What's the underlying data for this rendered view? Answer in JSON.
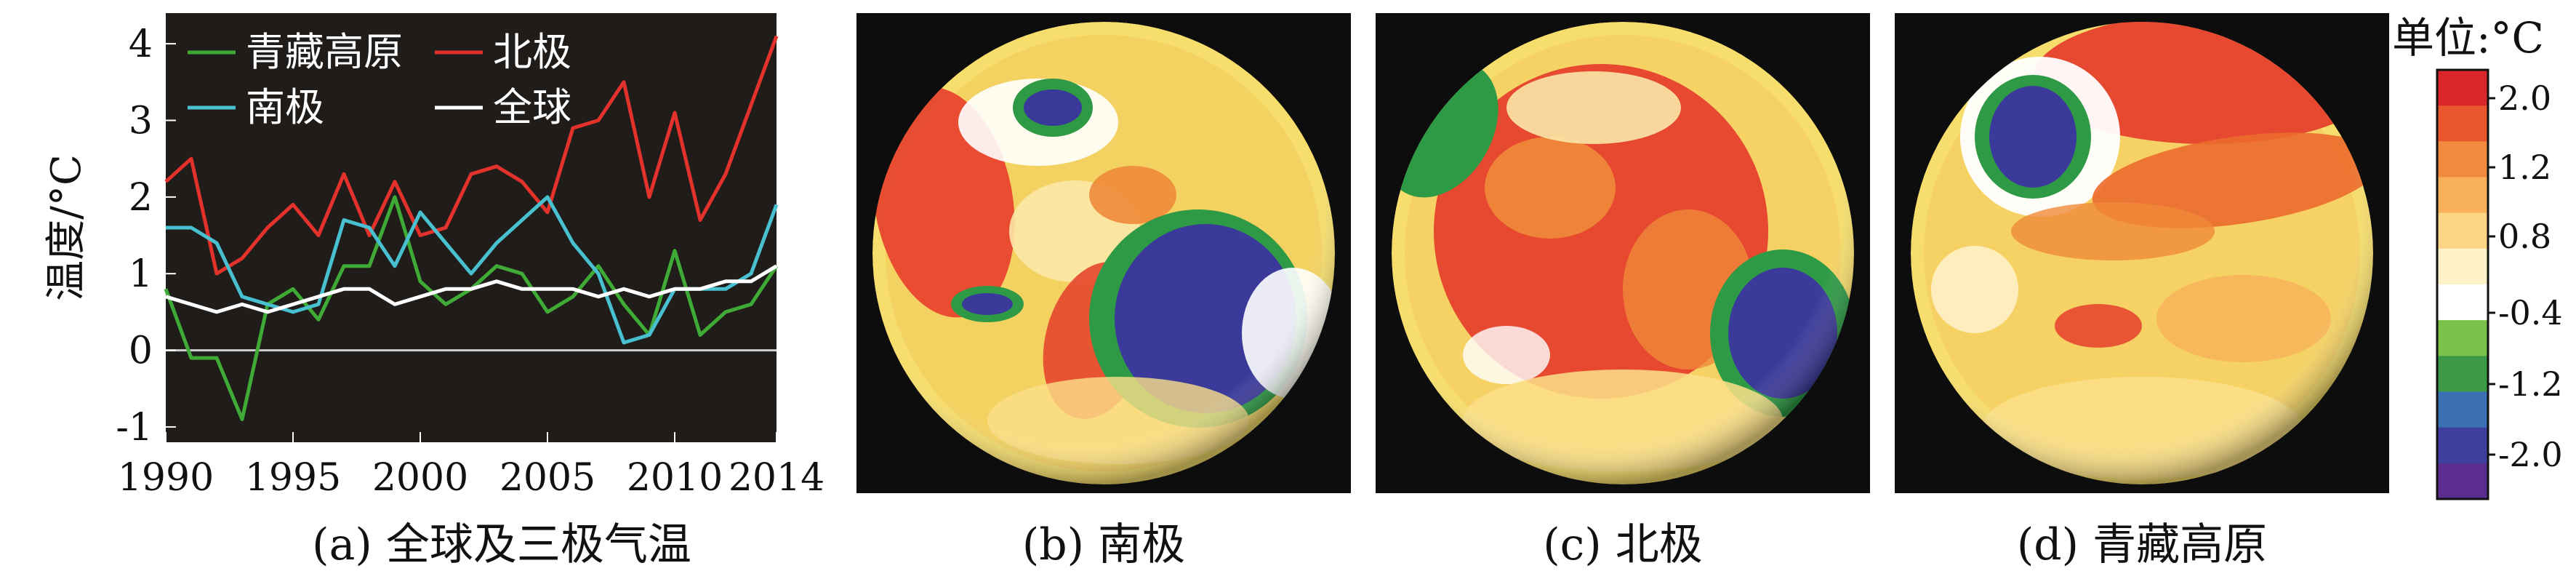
{
  "chart_data": [
    {
      "type": "line",
      "caption": "(a) 全球及三极气温",
      "ylabel": "温度/°C",
      "xlim": [
        1990,
        2014
      ],
      "ylim": [
        -1.2,
        4.4
      ],
      "x_ticks": [
        1990,
        1995,
        2000,
        2005,
        2010,
        2014
      ],
      "y_ticks": [
        -1,
        0,
        1,
        2,
        3,
        4
      ],
      "background": "#1f1c1a",
      "zero_line": 0,
      "legend_position": "top-left",
      "x": [
        1990,
        1991,
        1992,
        1993,
        1994,
        1995,
        1996,
        1997,
        1998,
        1999,
        2000,
        2001,
        2002,
        2003,
        2004,
        2005,
        2006,
        2007,
        2008,
        2009,
        2010,
        2011,
        2012,
        2013,
        2014
      ],
      "series": [
        {
          "name": "青藏高原",
          "color": "#3faa35",
          "values": [
            0.8,
            -0.1,
            -0.1,
            -0.9,
            0.6,
            0.8,
            0.4,
            1.1,
            1.1,
            2.0,
            0.9,
            0.6,
            0.8,
            1.1,
            1.0,
            0.5,
            0.7,
            1.1,
            0.6,
            0.2,
            1.3,
            0.2,
            0.5,
            0.6,
            1.1
          ]
        },
        {
          "name": "北极",
          "color": "#e2322b",
          "values": [
            2.2,
            2.5,
            1.0,
            1.2,
            1.6,
            1.9,
            1.5,
            2.3,
            1.5,
            2.2,
            1.5,
            1.6,
            2.3,
            2.4,
            2.2,
            1.8,
            2.9,
            3.0,
            3.5,
            2.0,
            3.1,
            1.7,
            2.3,
            3.2,
            4.1
          ]
        },
        {
          "name": "南极",
          "color": "#48c0cf",
          "values": [
            1.6,
            1.6,
            1.4,
            0.7,
            0.6,
            0.5,
            0.6,
            1.7,
            1.6,
            1.1,
            1.8,
            1.4,
            1.0,
            1.4,
            1.7,
            2.0,
            1.4,
            1.0,
            0.1,
            0.2,
            0.8,
            0.8,
            0.8,
            1.0,
            1.9
          ]
        },
        {
          "name": "全球",
          "color": "#ffffff",
          "values": [
            0.7,
            0.6,
            0.5,
            0.6,
            0.5,
            0.6,
            0.7,
            0.8,
            0.8,
            0.6,
            0.7,
            0.8,
            0.8,
            0.9,
            0.8,
            0.8,
            0.8,
            0.7,
            0.8,
            0.7,
            0.8,
            0.8,
            0.9,
            0.9,
            1.1
          ]
        }
      ]
    },
    {
      "type": "heatmap",
      "projection": "orthographic globe",
      "caption": "(b) 南极",
      "view_center": "south-pole",
      "hotspots": [
        {
          "label": "",
          "color": "#e2322b",
          "region": "west"
        },
        {
          "label": "",
          "color": "#3a3a9a",
          "region": "east"
        },
        {
          "label": "",
          "color": "#3a3a9a",
          "region": "north"
        }
      ]
    },
    {
      "type": "heatmap",
      "projection": "orthographic globe",
      "caption": "(c) 北极",
      "view_center": "north-pole",
      "hotspots": [
        {
          "label": "",
          "color": "#e2322b",
          "region": "center"
        },
        {
          "label": "",
          "color": "#3a3a9a",
          "region": "east"
        },
        {
          "label": "",
          "color": "#3faa35",
          "region": "north-west"
        }
      ]
    },
    {
      "type": "heatmap",
      "projection": "orthographic globe",
      "caption": "(d) 青藏高原",
      "view_center": "tibetan-plateau",
      "hotspots": [
        {
          "label": "",
          "color": "#e2322b",
          "region": "north"
        },
        {
          "label": "",
          "color": "#3a3a9a",
          "region": "north-west"
        }
      ]
    },
    {
      "type": "colorbar",
      "title": "单位:°C",
      "stops": [
        {
          "color": "#d8262a"
        },
        {
          "color": "#e8562d"
        },
        {
          "color": "#f18a3c"
        },
        {
          "color": "#f8b15a"
        },
        {
          "color": "#fbd485"
        },
        {
          "color": "#fff1c8"
        },
        {
          "color": "#ffffff"
        },
        {
          "color": "#7bc24a"
        },
        {
          "color": "#3c9a46"
        },
        {
          "color": "#3a6fb3"
        },
        {
          "color": "#3f3fa0"
        },
        {
          "color": "#5a2d8e"
        }
      ],
      "tick_labels": [
        "2.0",
        "1.2",
        "0.8",
        "-0.4",
        "-1.2",
        "-2.0"
      ]
    }
  ]
}
